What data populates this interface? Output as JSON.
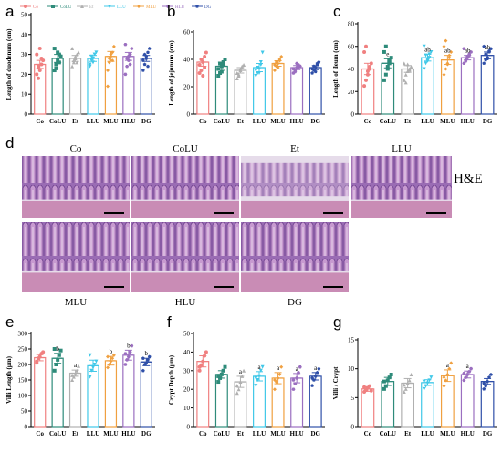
{
  "groups": [
    "Co",
    "CoLU",
    "Et",
    "LLU",
    "MLU",
    "HLU",
    "DG"
  ],
  "colors": [
    "#f08080",
    "#2e8b7a",
    "#b0b0b0",
    "#40c8e8",
    "#f0a040",
    "#9b6fc0",
    "#2f4fa8"
  ],
  "marker_icons": [
    "circle-icon",
    "square-icon",
    "triangle-icon",
    "inverted-triangle-icon",
    "diamond-icon",
    "hexagon-icon",
    "pentagon-icon"
  ],
  "legend": [
    "Co",
    "CoLU",
    "Et",
    "LLU",
    "MLU",
    "HLU",
    "DG"
  ],
  "he_label": "H&E",
  "panel_d_letter": "d",
  "micro_labels": [
    "Co",
    "CoLU",
    "Et",
    "LLU",
    "MLU",
    "HLU",
    "DG"
  ],
  "chart_data": [
    {
      "letter": "a",
      "type": "bar",
      "categories": [
        "Co",
        "CoLU",
        "Et",
        "LLU",
        "MLU",
        "HLU",
        "DG"
      ],
      "values": [
        25,
        28,
        28,
        28,
        29,
        29,
        28
      ],
      "errors": [
        2,
        2,
        1.5,
        1.5,
        2.5,
        2,
        1.5
      ],
      "points": [
        [
          20,
          18,
          22,
          25,
          27,
          30,
          24,
          33,
          28
        ],
        [
          22,
          25,
          27,
          30,
          29,
          33,
          23,
          31,
          26
        ],
        [
          24,
          26,
          28,
          30,
          31,
          33,
          27,
          29,
          26
        ],
        [
          25,
          27,
          28,
          30,
          31,
          24,
          29,
          26,
          30
        ],
        [
          22,
          26,
          29,
          31,
          34,
          14,
          28,
          30,
          27
        ],
        [
          20,
          24,
          27,
          30,
          33,
          35,
          28,
          29,
          25
        ],
        [
          22,
          25,
          28,
          31,
          33,
          27,
          30,
          29,
          24
        ]
      ],
      "letters": [
        "",
        "",
        "",
        "",
        "",
        "",
        ""
      ],
      "ylabel": "Length of duodenum (cm)",
      "ylim": [
        0,
        50
      ],
      "yticks": [
        0,
        10,
        20,
        30,
        40,
        50
      ]
    },
    {
      "letter": "b",
      "type": "bar",
      "categories": [
        "Co",
        "CoLU",
        "Et",
        "LLU",
        "MLU",
        "HLU",
        "DG"
      ],
      "values": [
        38,
        35,
        32,
        34,
        37,
        34,
        34
      ],
      "errors": [
        3,
        3,
        2,
        3,
        2,
        1.5,
        1.5
      ],
      "points": [
        [
          30,
          32,
          38,
          42,
          45,
          36,
          40,
          28,
          34
        ],
        [
          28,
          30,
          35,
          38,
          40,
          33,
          37,
          31,
          36
        ],
        [
          26,
          29,
          32,
          34,
          36,
          30,
          28,
          33,
          35
        ],
        [
          28,
          30,
          33,
          36,
          45,
          32,
          34,
          30,
          38
        ],
        [
          32,
          35,
          37,
          40,
          42,
          36,
          38,
          34,
          39
        ],
        [
          30,
          32,
          34,
          36,
          35,
          33,
          31,
          37,
          34
        ],
        [
          30,
          32,
          34,
          36,
          38,
          33,
          35,
          31,
          37
        ]
      ],
      "letters": [
        "",
        "",
        "",
        "",
        "",
        "",
        ""
      ],
      "ylabel": "Length of jejunum (cm)",
      "ylim": [
        0,
        60
      ],
      "yticks": [
        0,
        20,
        40,
        60
      ]
    },
    {
      "letter": "c",
      "type": "bar",
      "categories": [
        "Co",
        "CoLU",
        "Et",
        "LLU",
        "MLU",
        "HLU",
        "DG"
      ],
      "values": [
        40,
        45,
        40,
        50,
        48,
        50,
        52
      ],
      "errors": [
        5,
        4,
        3,
        3,
        4,
        2,
        3
      ],
      "points": [
        [
          25,
          30,
          35,
          40,
          45,
          55,
          60,
          38,
          42
        ],
        [
          30,
          35,
          40,
          45,
          50,
          55,
          60,
          42,
          48
        ],
        [
          30,
          35,
          38,
          40,
          42,
          45,
          28,
          44,
          39
        ],
        [
          40,
          45,
          48,
          50,
          55,
          60,
          52,
          47,
          53
        ],
        [
          35,
          40,
          45,
          50,
          55,
          60,
          65,
          44,
          52
        ],
        [
          45,
          48,
          50,
          52,
          55,
          58,
          47,
          51,
          53
        ],
        [
          45,
          48,
          50,
          55,
          58,
          60,
          53,
          49,
          56
        ]
      ],
      "letters": [
        "",
        "e",
        "",
        "ab",
        "ab",
        "ab",
        "ab"
      ],
      "ylabel": "Length of ileum (cm)",
      "ylim": [
        0,
        80
      ],
      "yticks": [
        0,
        20,
        40,
        60,
        80
      ]
    },
    {
      "letter": "e",
      "type": "bar",
      "categories": [
        "Co",
        "CoLU",
        "Et",
        "LLU",
        "MLU",
        "HLU",
        "DG"
      ],
      "values": [
        222,
        220,
        172,
        196,
        212,
        230,
        208
      ],
      "errors": [
        10,
        16,
        10,
        18,
        14,
        16,
        12
      ],
      "points": [
        [
          210,
          220,
          225,
          235,
          240,
          205
        ],
        [
          180,
          200,
          215,
          230,
          245,
          250
        ],
        [
          150,
          160,
          170,
          180,
          195,
          165
        ],
        [
          160,
          180,
          190,
          200,
          210,
          230
        ],
        [
          190,
          200,
          210,
          220,
          230,
          225
        ],
        [
          200,
          215,
          225,
          240,
          260,
          235
        ],
        [
          180,
          200,
          205,
          215,
          225,
          220
        ]
      ],
      "letters": [
        "",
        "b",
        "a",
        "",
        "b",
        "b",
        "b"
      ],
      "ylabel": "Villi Length (μm)",
      "ylim": [
        0,
        300
      ],
      "yticks": [
        0,
        50,
        100,
        150,
        200,
        250,
        300
      ]
    },
    {
      "letter": "f",
      "type": "bar",
      "categories": [
        "Co",
        "CoLU",
        "Et",
        "LLU",
        "MLU",
        "HLU",
        "DG"
      ],
      "values": [
        35,
        28,
        24,
        27,
        26,
        26,
        27
      ],
      "errors": [
        3,
        2,
        3,
        2.5,
        3,
        2.5,
        2
      ],
      "points": [
        [
          30,
          33,
          35,
          38,
          40,
          32
        ],
        [
          24,
          26,
          28,
          30,
          32,
          27
        ],
        [
          18,
          20,
          24,
          27,
          30,
          22
        ],
        [
          22,
          25,
          27,
          30,
          32,
          26
        ],
        [
          20,
          24,
          26,
          28,
          32,
          25
        ],
        [
          20,
          23,
          26,
          29,
          32,
          25
        ],
        [
          22,
          25,
          27,
          29,
          31,
          26
        ]
      ],
      "letters": [
        "",
        "",
        "a",
        "a",
        "a",
        "a",
        "a"
      ],
      "ylabel": "Crypt Depth (μm)",
      "ylim": [
        0,
        50
      ],
      "yticks": [
        0,
        10,
        20,
        30,
        40,
        50
      ]
    },
    {
      "letter": "g",
      "type": "bar",
      "categories": [
        "Co",
        "CoLU",
        "Et",
        "LLU",
        "MLU",
        "HLU",
        "DG"
      ],
      "values": [
        6.5,
        7.8,
        7.5,
        7.6,
        8.8,
        9.0,
        7.8
      ],
      "errors": [
        0.4,
        0.7,
        0.8,
        0.5,
        1.0,
        0.6,
        0.5
      ],
      "points": [
        [
          6,
          6.3,
          6.7,
          7,
          6.2,
          6.8
        ],
        [
          6.5,
          7,
          8,
          8.5,
          9,
          7.8
        ],
        [
          6,
          6.5,
          7.5,
          8,
          9,
          7.2
        ],
        [
          6.5,
          7,
          7.5,
          8,
          8.5,
          7.8
        ],
        [
          7,
          8,
          9,
          10,
          11,
          8.5
        ],
        [
          8,
          8.5,
          9,
          9.5,
          10,
          9.2
        ],
        [
          6.5,
          7,
          7.8,
          8.5,
          9,
          7.5
        ]
      ],
      "letters": [
        "",
        "",
        "",
        "",
        "a",
        "a",
        ""
      ],
      "ylabel": "Villi / Crypt",
      "ylim": [
        0,
        15
      ],
      "yticks": [
        0,
        5,
        10,
        15
      ]
    }
  ]
}
